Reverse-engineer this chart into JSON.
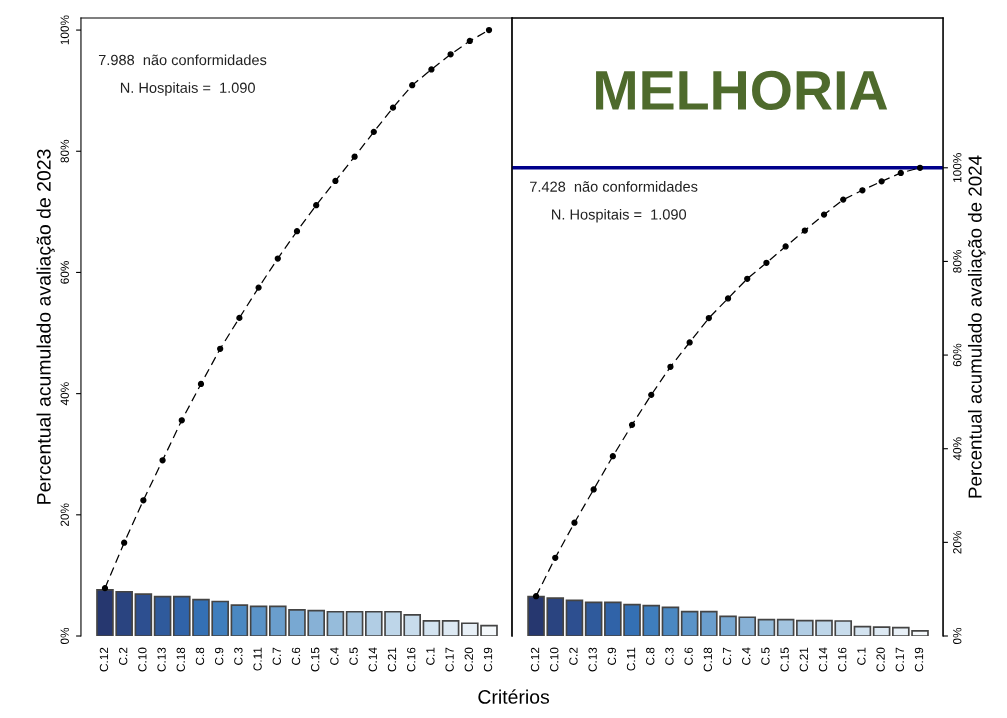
{
  "chart_data": [
    {
      "type": "bar",
      "xlabel": "Critérios",
      "ylabel": "Percentual acumulado avaliação de 2023",
      "categories": [
        "C.12",
        "C.2",
        "C.10",
        "C.13",
        "C.18",
        "C.8",
        "C.9",
        "C.3",
        "C.11",
        "C.7",
        "C.6",
        "C.15",
        "C.4",
        "C.5",
        "C.14",
        "C.21",
        "C.16",
        "C.1",
        "C.17",
        "C.20",
        "C.19"
      ],
      "series": [
        {
          "colors": [
            "#26376f",
            "#2a4480",
            "#2d4f90",
            "#2f5a9c",
            "#3063a8",
            "#3470b4",
            "#3f7ebd",
            "#4a88c2",
            "#5a93c8",
            "#6a9ecd",
            "#78a8d2",
            "#87b1d6",
            "#96bcdb",
            "#a3c4df",
            "#b1cde4",
            "#bed6e9",
            "#c8dcec",
            "#d3e3f0",
            "#dde9f3",
            "#e8f0f7",
            "#f4f8fb"
          ],
          "values": [
            7.6,
            7.3,
            6.9,
            6.5,
            6.5,
            6.0,
            5.7,
            5.1,
            4.9,
            4.9,
            4.3,
            4.2,
            4.0,
            4.0,
            4.0,
            4.0,
            3.5,
            2.5,
            2.5,
            2.1,
            1.7
          ]
        },
        {
          "type": "line",
          "color": "#000000",
          "values": [
            7.9,
            15.4,
            22.4,
            29.0,
            35.6,
            41.6,
            47.4,
            52.5,
            57.5,
            62.3,
            66.8,
            71.1,
            75.1,
            79.1,
            83.2,
            87.2,
            90.9,
            93.5,
            96.0,
            98.2,
            100
          ]
        }
      ],
      "ylim": [
        0,
        102
      ],
      "yticks": [
        {
          "value": 0,
          "label": "0%"
        },
        {
          "value": 20,
          "label": "20%"
        },
        {
          "value": 40,
          "label": "40%"
        },
        {
          "value": 60,
          "label": "60%"
        },
        {
          "value": 80,
          "label": "80%"
        },
        {
          "value": 100,
          "label": "100%"
        }
      ],
      "marker": "circle",
      "line_style": "dashed",
      "grid": false,
      "legend": false,
      "annotations": [
        "7.988  não conformidades",
        "N. Hospitais =  1.090"
      ]
    },
    {
      "type": "bar",
      "y2label": "Percentual acumulado avaliação de 2024",
      "categories": [
        "C.12",
        "C.10",
        "C.2",
        "C.13",
        "C.9",
        "C.11",
        "C.8",
        "C.3",
        "C.6",
        "C.18",
        "C.7",
        "C.4",
        "C.5",
        "C.15",
        "C.21",
        "C.14",
        "C.16",
        "C.1",
        "C.20",
        "C.17",
        "C.19"
      ],
      "series": [
        {
          "axis": "y2",
          "colors": [
            "#26376f",
            "#2a4480",
            "#2d4f90",
            "#2f5a9c",
            "#3063a8",
            "#3470b4",
            "#3f7ebd",
            "#4a88c2",
            "#5a93c8",
            "#6a9ecd",
            "#78a8d2",
            "#87b1d6",
            "#96bcdb",
            "#a3c4df",
            "#b1cde4",
            "#bed6e9",
            "#c8dcec",
            "#d3e3f0",
            "#dde9f3",
            "#e8f0f7",
            "#f4f8fb"
          ],
          "values": [
            8.4,
            8.1,
            7.6,
            7.2,
            7.2,
            6.7,
            6.5,
            6.1,
            5.2,
            5.2,
            4.2,
            4.0,
            3.5,
            3.5,
            3.3,
            3.3,
            3.2,
            2.0,
            1.9,
            1.8,
            1.1
          ]
        },
        {
          "type": "line",
          "axis": "y2",
          "color": "#000000",
          "values": [
            8.5,
            16.7,
            24.2,
            31.3,
            38.4,
            45.1,
            51.5,
            57.5,
            62.7,
            67.9,
            72.1,
            76.3,
            79.7,
            83.2,
            86.6,
            90.0,
            93.2,
            95.2,
            97.1,
            98.9,
            100
          ]
        }
      ],
      "y2lim": [
        0,
        132
      ],
      "y2ticks": [
        {
          "value": 0,
          "label": "0%"
        },
        {
          "value": 20,
          "label": "20%"
        },
        {
          "value": 40,
          "label": "40%"
        },
        {
          "value": 60,
          "label": "60%"
        },
        {
          "value": 80,
          "label": "80%"
        },
        {
          "value": 100,
          "label": "100%"
        }
      ],
      "ref_lines": [
        {
          "axis": "y2",
          "value": 100,
          "color": "#00008b"
        }
      ],
      "marker": "circle",
      "line_style": "dashed",
      "grid": false,
      "legend": false,
      "annotations": [
        "MELHORIA",
        "7.428  não conformidades",
        "N. Hospitais =  1.090"
      ]
    }
  ]
}
